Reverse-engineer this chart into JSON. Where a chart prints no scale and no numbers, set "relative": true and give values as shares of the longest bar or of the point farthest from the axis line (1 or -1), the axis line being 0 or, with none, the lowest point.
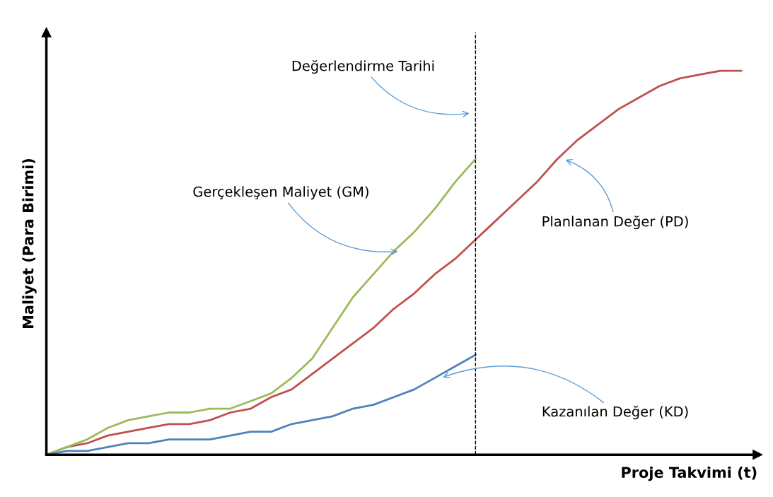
{
  "chart_data": {
    "type": "line",
    "relative": true,
    "xlabel": "Proje Takvimi (t)",
    "ylabel": "Maliyet (Para Birimi)",
    "categories": [
      null,
      null,
      null,
      null,
      null,
      null,
      null,
      null,
      null,
      null,
      null,
      null,
      null,
      null,
      null,
      null,
      null,
      null,
      null,
      null,
      null,
      null,
      null,
      null,
      null,
      null,
      null,
      null,
      null,
      null,
      null,
      null,
      null,
      null,
      null
    ],
    "series": [
      {
        "name": "Planlanan Değer (PD)",
        "color": "#c0504d",
        "values": [
          0,
          0.02,
          0.03,
          0.05,
          0.06,
          0.07,
          0.08,
          0.08,
          0.09,
          0.11,
          0.12,
          0.15,
          0.17,
          0.21,
          0.25,
          0.29,
          0.33,
          0.38,
          0.42,
          0.47,
          0.51,
          0.56,
          0.61,
          0.66,
          0.71,
          0.77,
          0.82,
          0.86,
          0.9,
          0.93,
          0.96,
          0.98,
          0.99,
          1,
          1
        ]
      },
      {
        "name": "Gerçekleşen Maliyet (GM)",
        "color": "#9bbb59",
        "values": [
          0,
          0.02,
          0.04,
          0.07,
          0.09,
          0.1,
          0.11,
          0.11,
          0.12,
          0.12,
          0.14,
          0.16,
          0.2,
          0.25,
          0.33,
          0.41,
          0.47,
          0.53,
          0.58,
          0.64,
          0.71,
          0.77,
          null,
          null,
          null,
          null,
          null,
          null,
          null,
          null,
          null,
          null,
          null,
          null,
          null
        ]
      },
      {
        "name": "Kazanılan Değer (KD)",
        "color": "#4f81bd",
        "values": [
          0,
          0.01,
          0.01,
          0.02,
          0.03,
          0.03,
          0.04,
          0.04,
          0.04,
          0.05,
          0.06,
          0.06,
          0.08,
          0.09,
          0.1,
          0.12,
          0.13,
          0.15,
          0.17,
          0.2,
          0.23,
          0.26,
          null,
          null,
          null,
          null,
          null,
          null,
          null,
          null,
          null,
          null,
          null,
          null,
          null
        ]
      }
    ],
    "annotations": [
      "Değerlendirme Tarihi"
    ],
    "legend": false,
    "tick_labels": false,
    "marker": "none",
    "line_style": "solid"
  }
}
